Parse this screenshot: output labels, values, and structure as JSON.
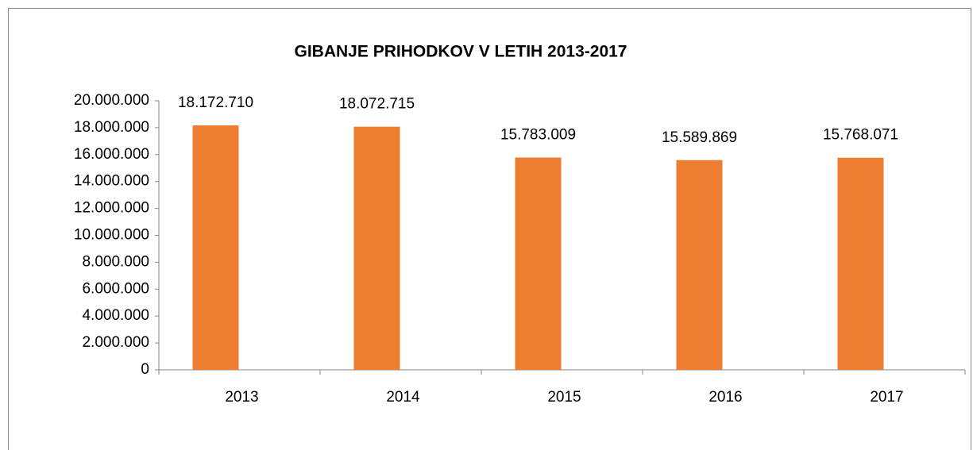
{
  "chart_data": {
    "type": "bar",
    "title": "GIBANJE PRIHODKOV V LETIH 2013-2017",
    "categories": [
      "2013",
      "2014",
      "2015",
      "2016",
      "2017"
    ],
    "values": [
      18172710,
      18072715,
      15783009,
      15589869,
      15768071
    ],
    "value_labels": [
      "18.172.710",
      "18.072.715",
      "15.783.009",
      "15.589.869",
      "15.768.071"
    ],
    "color": "#ed7d31",
    "ylim": [
      0,
      20000000
    ],
    "yticks": [
      0,
      {
        "value": 2000000,
        "label": "2.000.000"
      },
      {
        "value": 4000000,
        "label": "4.000.000"
      },
      {
        "value": 6000000,
        "label": "6.000.000"
      },
      {
        "value": 8000000,
        "label": "8.000.000"
      },
      {
        "value": 10000000,
        "label": "10.000.000"
      },
      {
        "value": 12000000,
        "label": "12.000.000"
      },
      {
        "value": 14000000,
        "label": "14.000.000"
      },
      {
        "value": 16000000,
        "label": "16.000.000"
      },
      {
        "value": 18000000,
        "label": "18.000.000"
      },
      {
        "value": 20000000,
        "label": "20.000.000"
      }
    ],
    "grid": false
  }
}
